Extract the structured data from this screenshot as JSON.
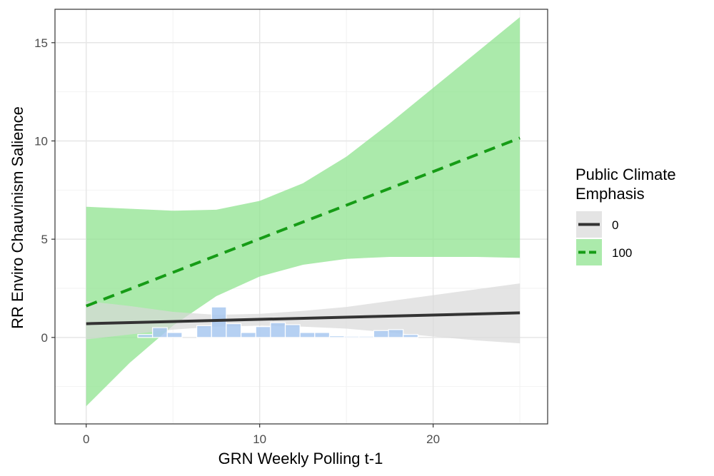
{
  "chart_data": {
    "type": "line",
    "xlabel": "GRN Weekly Polling t-1",
    "ylabel": "RR Enviro Chauvinism Salience",
    "xlim": [
      -1.8,
      26.6
    ],
    "ylim": [
      -4.4,
      16.7
    ],
    "x_ticks": [
      0,
      10,
      20
    ],
    "y_ticks": [
      0,
      5,
      10,
      15
    ],
    "grid": true,
    "legend": {
      "title_lines": [
        "Public Climate",
        "Emphasis"
      ],
      "position": "right"
    },
    "series": [
      {
        "name": "0",
        "color": "#333333",
        "band_color": "#d9d9d9",
        "dash": "solid",
        "x": [
          0,
          25
        ],
        "y": [
          0.7,
          1.25
        ],
        "ci_x": [
          0,
          2.5,
          5,
          7.5,
          10,
          12.5,
          15,
          17.5,
          20,
          22.5,
          25
        ],
        "ci_lower": [
          -0.1,
          0.15,
          0.4,
          0.55,
          0.6,
          0.55,
          0.45,
          0.25,
          0.05,
          -0.15,
          -0.3
        ],
        "ci_upper": [
          1.85,
          1.6,
          1.3,
          1.15,
          1.2,
          1.35,
          1.55,
          1.85,
          2.15,
          2.45,
          2.75
        ]
      },
      {
        "name": "100",
        "color": "#169c16",
        "band_color": "#8fe38f",
        "dash": "dashed",
        "x": [
          0,
          25
        ],
        "y": [
          1.6,
          10.15
        ],
        "ci_x": [
          0,
          2.5,
          5,
          7.5,
          10,
          12.5,
          15,
          17.5,
          20,
          22.5,
          25
        ],
        "ci_lower": [
          -3.5,
          -1.3,
          0.6,
          2.1,
          3.1,
          3.7,
          4.0,
          4.1,
          4.1,
          4.1,
          4.05
        ],
        "ci_upper": [
          6.65,
          6.55,
          6.45,
          6.5,
          6.95,
          7.85,
          9.2,
          10.9,
          12.7,
          14.5,
          16.3
        ]
      }
    ],
    "histogram": {
      "color": "#a8c8f0",
      "edge": "#ffffff",
      "bin_width": 0.85,
      "bins": [
        {
          "x": 3.4,
          "h": 0.15
        },
        {
          "x": 4.25,
          "h": 0.5
        },
        {
          "x": 5.1,
          "h": 0.25
        },
        {
          "x": 6.8,
          "h": 0.6
        },
        {
          "x": 7.65,
          "h": 1.55
        },
        {
          "x": 8.5,
          "h": 0.7
        },
        {
          "x": 9.35,
          "h": 0.25
        },
        {
          "x": 10.2,
          "h": 0.55
        },
        {
          "x": 11.05,
          "h": 0.75
        },
        {
          "x": 11.9,
          "h": 0.65
        },
        {
          "x": 12.75,
          "h": 0.25
        },
        {
          "x": 13.6,
          "h": 0.25
        },
        {
          "x": 14.45,
          "h": 0.08
        },
        {
          "x": 15.3,
          "h": 0.06
        },
        {
          "x": 16.15,
          "h": 0.06
        },
        {
          "x": 17.0,
          "h": 0.35
        },
        {
          "x": 17.85,
          "h": 0.4
        },
        {
          "x": 18.7,
          "h": 0.15
        }
      ]
    }
  }
}
